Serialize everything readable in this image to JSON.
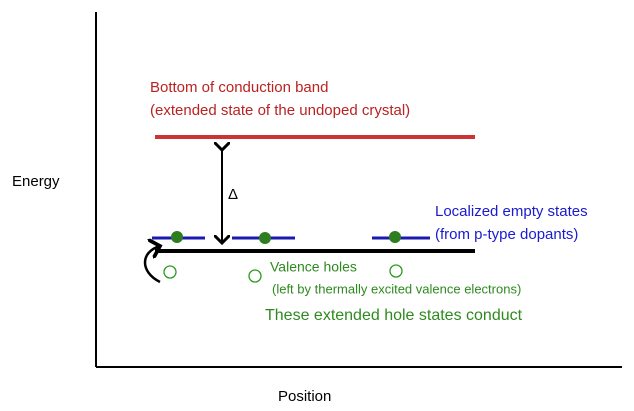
{
  "axes": {
    "y_label": "Energy",
    "x_label": "Position"
  },
  "labels": {
    "conduction_band": [
      "Bottom of conduction band",
      "(extended state of the undoped crystal)"
    ],
    "gap": "Δ",
    "dopant_states": [
      "Localized empty states",
      "(from p-type dopants)"
    ],
    "valence_holes": [
      "Valence holes",
      "(left by thermally excited valence electrons)"
    ],
    "conduct": "These extended hole states conduct"
  }
}
